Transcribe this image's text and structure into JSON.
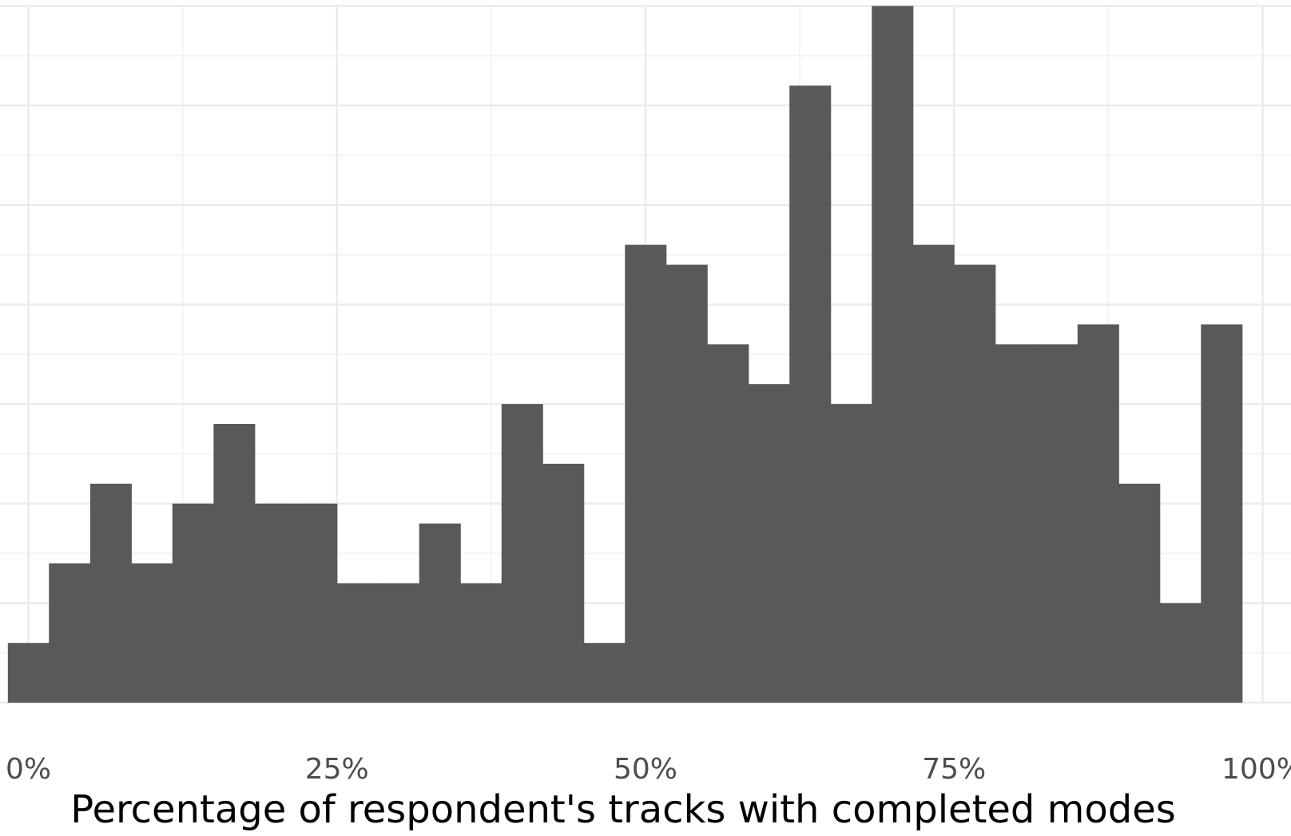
{
  "chart_data": {
    "type": "bar",
    "subtype": "histogram",
    "xlabel": "Percentage of respondent's tracks with completed modes",
    "ylabel": "",
    "title": "",
    "x_ticks": [
      {
        "value": 0,
        "label": "0%"
      },
      {
        "value": 25,
        "label": "25%"
      },
      {
        "value": 50,
        "label": "50%"
      },
      {
        "value": 75,
        "label": "75%"
      },
      {
        "value": 100,
        "label": "100%"
      }
    ],
    "xlim": [
      -2.3,
      102.3
    ],
    "ylim": [
      0,
      35.3
    ],
    "y_ticks": [
      0,
      5,
      10,
      15,
      20,
      25,
      30,
      35
    ],
    "show_y_tick_labels": false,
    "grid": true,
    "bin_width": 3.33,
    "bins": [
      {
        "x": 0.0,
        "count": 3
      },
      {
        "x": 3.33,
        "count": 7
      },
      {
        "x": 6.67,
        "count": 11
      },
      {
        "x": 10.0,
        "count": 7
      },
      {
        "x": 13.33,
        "count": 10
      },
      {
        "x": 16.67,
        "count": 14
      },
      {
        "x": 20.0,
        "count": 10
      },
      {
        "x": 23.33,
        "count": 10
      },
      {
        "x": 26.67,
        "count": 6
      },
      {
        "x": 30.0,
        "count": 6
      },
      {
        "x": 33.33,
        "count": 9
      },
      {
        "x": 36.67,
        "count": 6
      },
      {
        "x": 40.0,
        "count": 15
      },
      {
        "x": 43.33,
        "count": 12
      },
      {
        "x": 46.67,
        "count": 3
      },
      {
        "x": 50.0,
        "count": 23
      },
      {
        "x": 53.33,
        "count": 22
      },
      {
        "x": 56.67,
        "count": 18
      },
      {
        "x": 60.0,
        "count": 16
      },
      {
        "x": 63.33,
        "count": 31
      },
      {
        "x": 66.67,
        "count": 15
      },
      {
        "x": 70.0,
        "count": 35
      },
      {
        "x": 73.33,
        "count": 23
      },
      {
        "x": 76.67,
        "count": 22
      },
      {
        "x": 80.0,
        "count": 18
      },
      {
        "x": 83.33,
        "count": 18
      },
      {
        "x": 86.67,
        "count": 19
      },
      {
        "x": 90.0,
        "count": 11
      },
      {
        "x": 93.33,
        "count": 5
      },
      {
        "x": 96.67,
        "count": 19
      },
      {
        "x": 100.0,
        "count": 0
      }
    ],
    "colors": {
      "bar": "#595959",
      "grid_major": "#ebebeb",
      "grid_minor": "#f3f3f3",
      "background": "#ffffff"
    }
  }
}
